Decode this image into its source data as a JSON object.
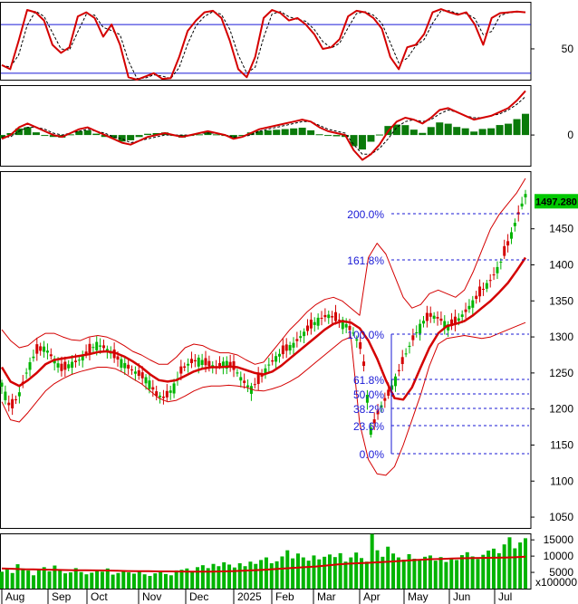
{
  "colors": {
    "price_up": "#00b400",
    "price_down": "#d40000",
    "ma": "#d40000",
    "bollinger": "#d40000",
    "fib": "#1a1ad6",
    "frame": "#000000",
    "volume": "#00b400",
    "badge": "#00c800"
  },
  "chart_data": [
    {
      "type": "line",
      "title": "",
      "panel": "oscillator",
      "y_ticks": [
        50
      ],
      "ylim": [
        12,
        108
      ],
      "reference_lines": [
        80,
        20
      ],
      "series": [
        {
          "values": [
            30,
            25,
            60,
            98,
            95,
            85,
            55,
            45,
            52,
            90,
            95,
            88,
            65,
            80,
            55,
            15,
            12,
            16,
            20,
            13,
            14,
            40,
            72,
            85,
            95,
            97,
            88,
            60,
            25,
            15,
            40,
            88,
            98,
            94,
            85,
            88,
            80,
            68,
            50,
            52,
            62,
            90,
            97,
            95,
            88,
            75,
            40,
            25,
            52,
            55,
            68,
            95,
            99,
            95,
            92,
            95,
            80,
            55,
            88,
            94,
            95,
            96,
            95
          ]
        }
      ]
    },
    {
      "type": "line",
      "title": "",
      "panel": "macd",
      "y_ticks": [
        0
      ],
      "series": [
        {
          "values": [
            -2,
            0,
            4,
            6,
            4,
            2,
            0,
            -1,
            1,
            3,
            4,
            2,
            0,
            -2,
            -4,
            -5,
            -3,
            -1,
            0,
            1,
            0,
            -1,
            0,
            1,
            2,
            1,
            0,
            -2,
            -1,
            1,
            3,
            4,
            5,
            6,
            7,
            8,
            7,
            4,
            2,
            1,
            0,
            -8,
            -13,
            -10,
            -5,
            2,
            7,
            9,
            8,
            6,
            9,
            13,
            14,
            12,
            10,
            8,
            9,
            10,
            12,
            14,
            18,
            23
          ]
        },
        {
          "values": [
            -1,
            -1,
            2,
            4,
            4,
            3,
            1,
            0,
            1,
            2,
            3,
            2,
            1,
            -1,
            -2,
            -4,
            -3,
            -2,
            -1,
            0,
            0,
            0,
            0,
            1,
            1,
            1,
            0,
            -1,
            -1,
            0,
            2,
            3,
            4,
            5,
            6,
            7,
            7,
            5,
            3,
            2,
            1,
            -5,
            -10,
            -10,
            -7,
            -2,
            4,
            7,
            8,
            7,
            8,
            11,
            13,
            12,
            10,
            9,
            9,
            10,
            11,
            13,
            16,
            20
          ]
        }
      ]
    },
    {
      "type": "line",
      "title": "",
      "panel": "price",
      "ylim": [
        1035,
        1530
      ],
      "y_ticks": [
        1050,
        1100,
        1150,
        1200,
        1250,
        1300,
        1350,
        1400,
        1450
      ],
      "x_ticks": [
        "Aug",
        "Sep",
        "Oct",
        "Nov",
        "Dec",
        "2025",
        "Feb",
        "Mar",
        "Apr",
        "May",
        "Jun",
        "Jul"
      ],
      "last_value": "1497.280",
      "fib_levels": [
        {
          "label": "200.0%",
          "value": 1435
        },
        {
          "label": "161.8%",
          "value": 1420
        },
        {
          "label": "100.0%",
          "value": 1310
        },
        {
          "label": "61.8%",
          "value": 1245
        },
        {
          "label": "50.0%",
          "value": 1224
        },
        {
          "label": "38.2%",
          "value": 1203
        },
        {
          "label": "23.6%",
          "value": 1178
        },
        {
          "label": "0.0%",
          "value": 1137
        }
      ],
      "series": [
        {
          "values": [
            1235,
            1200,
            1220,
            1255,
            1280,
            1285,
            1270,
            1255,
            1262,
            1268,
            1278,
            1290,
            1285,
            1275,
            1265,
            1255,
            1248,
            1240,
            1220,
            1215,
            1230,
            1255,
            1265,
            1268,
            1262,
            1258,
            1265,
            1258,
            1240,
            1228,
            1240,
            1260,
            1272,
            1282,
            1290,
            1303,
            1315,
            1325,
            1330,
            1325,
            1318,
            1305,
            1280,
            1170,
            1200,
            1220,
            1245,
            1275,
            1300,
            1320,
            1330,
            1325,
            1315,
            1322,
            1335,
            1350,
            1365,
            1380,
            1400,
            1430,
            1465,
            1497
          ]
        },
        {
          "values": [
            1258,
            1238,
            1232,
            1240,
            1250,
            1262,
            1268,
            1270,
            1272,
            1274,
            1276,
            1279,
            1280,
            1278,
            1273,
            1266,
            1258,
            1248,
            1240,
            1238,
            1240,
            1246,
            1252,
            1256,
            1258,
            1258,
            1259,
            1258,
            1254,
            1250,
            1248,
            1252,
            1260,
            1270,
            1280,
            1290,
            1300,
            1310,
            1318,
            1322,
            1320,
            1312,
            1295,
            1270,
            1240,
            1215,
            1213,
            1230,
            1258,
            1285,
            1305,
            1315,
            1318,
            1322,
            1330,
            1340,
            1350,
            1362,
            1375,
            1392,
            1410
          ]
        },
        {
          "values": [
            1310,
            1295,
            1285,
            1288,
            1298,
            1305,
            1305,
            1300,
            1296,
            1295,
            1300,
            1302,
            1300,
            1295,
            1288,
            1280,
            1275,
            1268,
            1262,
            1262,
            1272,
            1285,
            1290,
            1288,
            1282,
            1278,
            1278,
            1275,
            1268,
            1262,
            1265,
            1280,
            1295,
            1310,
            1322,
            1335,
            1345,
            1352,
            1355,
            1350,
            1340,
            1330,
            1410,
            1430,
            1415,
            1385,
            1355,
            1340,
            1345,
            1360,
            1365,
            1360,
            1355,
            1365,
            1390,
            1420,
            1450,
            1470,
            1485,
            1500,
            1520
          ]
        },
        {
          "values": [
            1210,
            1185,
            1182,
            1195,
            1210,
            1225,
            1235,
            1242,
            1248,
            1252,
            1255,
            1258,
            1258,
            1256,
            1250,
            1242,
            1235,
            1225,
            1215,
            1210,
            1212,
            1218,
            1225,
            1230,
            1232,
            1232,
            1233,
            1232,
            1230,
            1226,
            1225,
            1228,
            1232,
            1238,
            1245,
            1255,
            1265,
            1275,
            1285,
            1295,
            1300,
            1180,
            1130,
            1110,
            1108,
            1120,
            1150,
            1185,
            1220,
            1260,
            1290,
            1298,
            1300,
            1302,
            1300,
            1298,
            1300,
            1305,
            1310,
            1315,
            1320
          ]
        }
      ]
    },
    {
      "type": "bar",
      "title": "",
      "panel": "volume",
      "y_ticks": [
        5000,
        10000,
        15000
      ],
      "multiplier_label": "x100000",
      "ylim": [
        0,
        17000
      ],
      "values": [
        5200,
        6100,
        4800,
        7500,
        6200,
        5600,
        4100,
        5900,
        6600,
        5300,
        7100,
        6000,
        4700,
        5000,
        6300,
        5100,
        4400,
        4900,
        5600,
        5200,
        6200,
        4300,
        4800,
        5700,
        5000,
        4600,
        5200,
        4400,
        3900,
        4700,
        5400,
        4500,
        4100,
        5600,
        5800,
        6200,
        5200,
        6600,
        7200,
        6300,
        7600,
        6900,
        8100,
        7400,
        6500,
        7800,
        6900,
        8300,
        7600,
        8800,
        9600,
        7800,
        8400,
        9900,
        11800,
        9300,
        10800,
        9600,
        8600,
        10200,
        9000,
        9800,
        10500,
        9700,
        10900,
        8300,
        9600,
        11100,
        9400,
        8300,
        16800,
        11800,
        9800,
        12900,
        10800,
        9600,
        8900,
        10600,
        9200,
        8700,
        9800,
        10200,
        8600,
        9700,
        8200,
        9400,
        8800,
        10300,
        11200,
        9900,
        9100,
        10400,
        11700,
        12300,
        10900,
        13600,
        15800,
        12400,
        14200,
        15500
      ],
      "series": [
        {
          "name": "",
          "values": [
            6200,
            6100,
            5950,
            5900,
            5850,
            5780,
            5700,
            5650,
            5620,
            5600,
            5580,
            5500,
            5420,
            5380,
            5340,
            5300,
            5300,
            5280,
            5250,
            5230,
            5240,
            5300,
            5380,
            5500,
            5620,
            5800,
            6000,
            6200,
            6400,
            6600,
            6800,
            7100,
            7400,
            7650,
            7800,
            7950,
            8100,
            8300,
            8500,
            8700,
            8900,
            9050,
            9150,
            9250,
            9350,
            9400,
            9450,
            9500,
            9550,
            9650,
            9800
          ]
        }
      ]
    }
  ]
}
